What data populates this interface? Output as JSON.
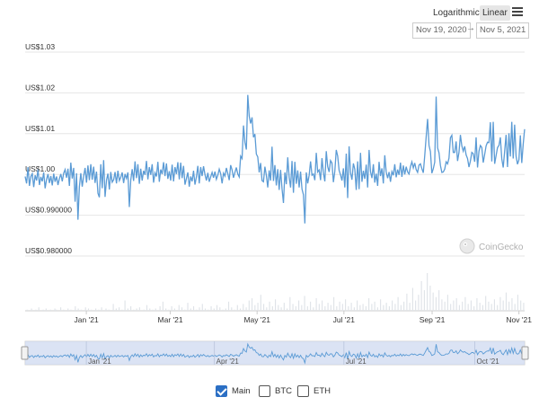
{
  "controls": {
    "scale_options": [
      "Logarithmic",
      "Linear"
    ],
    "active_scale": "Linear",
    "date_from": "Nov 19, 2020",
    "date_to": "Nov 5, 2021",
    "date_separator": "→"
  },
  "watermark": "CoinGecko",
  "legend": [
    {
      "label": "Main",
      "checked": true
    },
    {
      "label": "BTC",
      "checked": false
    },
    {
      "label": "ETH",
      "checked": false
    }
  ],
  "colors": {
    "line": "#5b9bd5",
    "volume": "#dfe3e8",
    "navigator_fill": "#cfdaf0",
    "navigator_line": "#5b9bd5",
    "grid": "#e6e6e6"
  },
  "chart_data": {
    "type": "line",
    "title": "",
    "xlabel": "",
    "ylabel": "",
    "x_ticks": [
      "Jan '21",
      "Mar '21",
      "May '21",
      "Jul '21",
      "Sep '21",
      "Nov '21"
    ],
    "y_ticks": [
      "US$1.03",
      "US$1.02",
      "US$1.01",
      "US$1.00",
      "US$0.990000",
      "US$0.980000"
    ],
    "ylim": [
      0.98,
      1.03
    ],
    "x_range": [
      "2020-11-19",
      "2021-11-05"
    ],
    "grid": true,
    "series": [
      {
        "values": [
          0.9995,
          0.9978,
          1.0018,
          0.9972,
          0.9995,
          1.0002,
          0.9969,
          0.9998,
          0.9985,
          1.0012,
          0.9974,
          0.9994,
          0.9983,
          1.0005,
          0.9966,
          0.9988,
          1.0001,
          0.9979,
          0.9996,
          0.9973,
          1.0002,
          0.9982,
          0.9995,
          0.9974,
          0.999,
          1.0001,
          0.9983,
          1.0003,
          1.0012,
          0.9992,
          1.0014,
          0.9972,
          1.0029,
          0.999,
          1.0016,
          0.9933,
          1.0003,
          0.9889,
          0.997,
          1.0003,
          0.997,
          0.9996,
          1.0016,
          0.998,
          1.0022,
          0.9986,
          1.0025,
          0.9987,
          1.0019,
          0.9979,
          1.0007,
          0.9954,
          0.9944,
          1.0025,
          0.9966,
          1.0035,
          0.9945,
          0.9986,
          1.0002,
          0.9963,
          1.0006,
          0.9981,
          0.9987,
          1.0006,
          0.9978,
          1.0009,
          0.9985,
          0.9993,
          1.0005,
          0.9979,
          1.0001,
          0.999,
          1.0005,
          0.992,
          0.9986,
          1.0013,
          0.9984,
          1.0032,
          0.9991,
          1.0025,
          0.9977,
          1.0014,
          0.9985,
          1.0009,
          0.9999,
          1.0033,
          0.9988,
          1.0018,
          0.9999,
          1.0025,
          0.998,
          1.0004,
          0.9995,
          1.0031,
          0.9982,
          1.0012,
          1.0001,
          1.003,
          0.9996,
          1.0027,
          0.9989,
          1.0008,
          0.9985,
          1.0024,
          0.9983,
          1.0018,
          1.0001,
          1.003,
          0.9988,
          1.0029,
          0.9991,
          1.0021,
          0.9975,
          0.999,
          1.0005,
          0.997,
          0.9995,
          0.9983,
          1.0009,
          0.9975,
          0.9994,
          1.0021,
          0.9978,
          1.0018,
          0.9996,
          1.002,
          1.0,
          0.9985,
          1.0004,
          0.9982,
          0.9994,
          1.0005,
          0.9992,
          1.0007,
          0.9988,
          0.9998,
          1.0013,
          1.0002,
          0.9978,
          1.0003,
          0.9996,
          1.0016,
          1.0002,
          0.9986,
          1.0023,
          1.0011,
          0.9992,
          1.0005,
          1.0017,
          1.0001,
          0.9994,
          1.0045,
          1.0039,
          1.012,
          1.0079,
          1.0061,
          1.0195,
          1.0143,
          1.0125,
          1.014,
          1.0091,
          1.0099,
          1.005,
          1.0043,
          1.0005,
          1.0028,
          0.9985,
          0.9982,
          1.0019,
          0.9998,
          0.9968,
          1.001,
          0.9985,
          1.0068,
          0.9984,
          1.0023,
          0.9973,
          1.0013,
          0.9962,
          1.0011,
          0.9965,
          0.993,
          1.0005,
          0.9976,
          1.0042,
          0.9993,
          0.9968,
          1.0033,
          0.9955,
          1.0031,
          0.9977,
          1.001,
          0.9968,
          1.0007,
          0.9964,
          0.995,
          0.988,
          1.0005,
          0.9978,
          0.9998,
          1.0032,
          0.9998,
          1.0001,
          0.9986,
          1.0053,
          1.0006,
          1.0011,
          0.9986,
          1.004,
          1.0004,
          0.9983,
          1.0057,
          1.0019,
          1.0006,
          1.0034,
          1.0028,
          0.9981,
          1.0008,
          1.006,
          1.0045,
          1.001,
          0.9999,
          0.9985,
          1.0015,
          0.9968,
          1.0051,
          0.9942,
          1.0069,
          1.0004,
          0.9987,
          1.0027,
          1.0013,
          0.9962,
          1.0032,
          0.9964,
          1.0053,
          0.9982,
          1.0009,
          0.9989,
          1.0024,
          0.9968,
          1.006,
          1.0007,
          0.9991,
          1.0025,
          0.998,
          1.0002,
          0.9972,
          1.0031,
          0.9996,
          1.0015,
          0.9978,
          1.0047,
          1.0006,
          0.9991,
          1.0006,
          0.9982,
          1.0007,
          0.9998,
          1.0025,
          0.9993,
          1.0012,
          0.9999,
          1.0029,
          0.9994,
          1.0022,
          1.0,
          1.0019,
          1.0006,
          1.0001,
          1.0019,
          1.0031,
          1.0016,
          1.0028,
          1.0012,
          1.0005,
          1.0023,
          1.0026,
          1.0014,
          1.0004,
          1.0046,
          1.0092,
          1.0136,
          1.0071,
          1.0056,
          1.0003,
          1.0014,
          1.003,
          1.0191,
          1.0065,
          1.0053,
          1.0022,
          1.0005,
          1.0006,
          1.0013,
          1.0031,
          1.0026,
          1.004,
          1.009,
          1.0096,
          1.0054,
          1.0054,
          1.0081,
          1.0033,
          1.0054,
          1.0097,
          1.007,
          1.0057,
          1.0069,
          1.0048,
          1.0039,
          1.0018,
          1.0033,
          1.0054,
          1.0051,
          1.0031,
          1.0091,
          1.0017,
          1.0057,
          1.0071,
          1.0066,
          1.0029,
          1.0049,
          1.007,
          1.0079,
          1.0078,
          1.0128,
          1.0032,
          1.0129,
          1.0026,
          1.0046,
          1.0066,
          1.0071,
          1.0091,
          1.0038,
          1.0017,
          1.0057,
          1.0097,
          1.0018,
          1.0101,
          1.0044,
          1.0129,
          1.0039,
          1.0122,
          1.0045,
          1.0025,
          1.0036,
          1.0096,
          1.0028,
          1.0074,
          1.0111
        ]
      }
    ],
    "volume": [
      0,
      1,
      0,
      0,
      2,
      0,
      0,
      1,
      0,
      3,
      0,
      0,
      1,
      0,
      2,
      0,
      0,
      1,
      0,
      0,
      2,
      1,
      0,
      0,
      3,
      0,
      1,
      0,
      0,
      2,
      0,
      1,
      0,
      0,
      4,
      0,
      2,
      0,
      1,
      0,
      0,
      3,
      0,
      2,
      0,
      1,
      0,
      0,
      2,
      0,
      1,
      0,
      3,
      0,
      0,
      2,
      0,
      1,
      0,
      0,
      6,
      0,
      2,
      0,
      3,
      0,
      1,
      0,
      9,
      0,
      2,
      0,
      4,
      0,
      1,
      0,
      2,
      0,
      3,
      0,
      0,
      1,
      0,
      5,
      0,
      2,
      0,
      1,
      0,
      2,
      0,
      0,
      4,
      0,
      8,
      0,
      2,
      0,
      1,
      0,
      4,
      0,
      2,
      0,
      0,
      5,
      0,
      3,
      0,
      1,
      0,
      7,
      0,
      2,
      0,
      4,
      0,
      1,
      0,
      3,
      0,
      6,
      0,
      2,
      0,
      1,
      0,
      4,
      0,
      2,
      0,
      5,
      0,
      3,
      0,
      1,
      0,
      2,
      0,
      8,
      0,
      3,
      0,
      1,
      0,
      5,
      0,
      2,
      0,
      6,
      0,
      3,
      0,
      9,
      0,
      11,
      0,
      5,
      0,
      7,
      0,
      14,
      0,
      6,
      0,
      3,
      0,
      8,
      0,
      4,
      0,
      10,
      0,
      5,
      0,
      3,
      0,
      7,
      0,
      2,
      0,
      12,
      0,
      6,
      0,
      4,
      0,
      9,
      0,
      5,
      0,
      13,
      0,
      4,
      0,
      8,
      0,
      3,
      0,
      11,
      0,
      6,
      0,
      9,
      0,
      4,
      0,
      7,
      0,
      5,
      0,
      12,
      0,
      4,
      0,
      8,
      0,
      6,
      0,
      10,
      0,
      4,
      0,
      7,
      0,
      3,
      0,
      9,
      0,
      5,
      0,
      6,
      0,
      4,
      0,
      11,
      0,
      6,
      0,
      8,
      0,
      3,
      0,
      10,
      0,
      5,
      0,
      7,
      0,
      4,
      0,
      9,
      0,
      6,
      0,
      12,
      0,
      5,
      0,
      8,
      0,
      15,
      0,
      7,
      0,
      20,
      0,
      9,
      0,
      14,
      0,
      26,
      0,
      18,
      0,
      33,
      0,
      22,
      0,
      16,
      0,
      12,
      0,
      18,
      0,
      10,
      0,
      8,
      0,
      14,
      0,
      6,
      0,
      9,
      0,
      11,
      0,
      5,
      0,
      8,
      0,
      12,
      0,
      6,
      0,
      9,
      0,
      4,
      0,
      11,
      0,
      7,
      0,
      5,
      0,
      13,
      0,
      8,
      0,
      6,
      0,
      10,
      0,
      5,
      0,
      12,
      0,
      9,
      0,
      16,
      0,
      8,
      0,
      11,
      0,
      6,
      0,
      14,
      0,
      9,
      0,
      7
    ]
  }
}
